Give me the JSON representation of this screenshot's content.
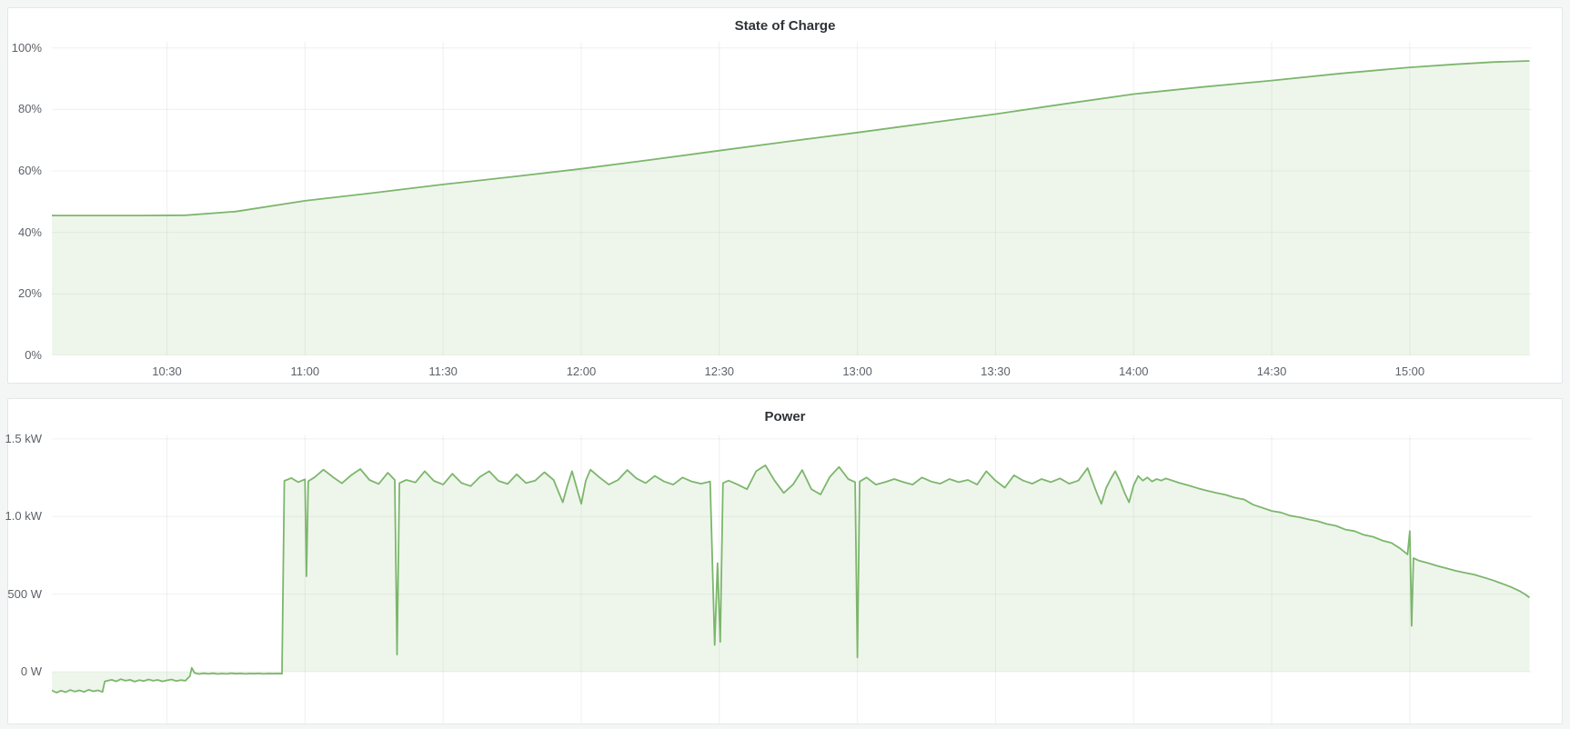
{
  "page": {
    "background": "#f4f5f5",
    "panel_background": "#ffffff",
    "panel_border": "#e4e6e9"
  },
  "panels": [
    {
      "title": "State of Charge"
    },
    {
      "title": "Power"
    }
  ],
  "colors": {
    "series_green_line": "#7cb66c",
    "series_green_fill": "rgba(124,182,108,0.13)",
    "grid_line": "rgba(40,46,52,0.07)",
    "axis_text": "#5d6269",
    "title_text": "#2f3337"
  },
  "chart_data": [
    {
      "type": "area",
      "title": "State of Charge",
      "x_unit": "time of day (minutes since 00:00)",
      "y_unit": "percent",
      "xlim": [
        605,
        926.5
      ],
      "ylim": [
        0,
        102
      ],
      "fill_baseline": 0,
      "grid": true,
      "legend": "none",
      "show_x_labels": true,
      "x_ticks": [
        {
          "value": 630,
          "label": "10:30"
        },
        {
          "value": 660,
          "label": "11:00"
        },
        {
          "value": 690,
          "label": "11:30"
        },
        {
          "value": 720,
          "label": "12:00"
        },
        {
          "value": 750,
          "label": "12:30"
        },
        {
          "value": 780,
          "label": "13:00"
        },
        {
          "value": 810,
          "label": "13:30"
        },
        {
          "value": 840,
          "label": "14:00"
        },
        {
          "value": 870,
          "label": "14:30"
        },
        {
          "value": 900,
          "label": "15:00"
        }
      ],
      "y_ticks": [
        {
          "value": 100,
          "label": "100%"
        },
        {
          "value": 80,
          "label": "80%"
        },
        {
          "value": 60,
          "label": "60%"
        },
        {
          "value": 40,
          "label": "40%"
        },
        {
          "value": 20,
          "label": "20%"
        },
        {
          "value": 0,
          "label": "0%"
        }
      ],
      "series": [
        {
          "name": "State of Charge",
          "points": [
            [
              605,
              45.5
            ],
            [
              615,
              45.5
            ],
            [
              625,
              45.5
            ],
            [
              634,
              45.6
            ],
            [
              645,
              46.8
            ],
            [
              660,
              50.3
            ],
            [
              675,
              52.9
            ],
            [
              690,
              55.6
            ],
            [
              705,
              58.1
            ],
            [
              720,
              60.7
            ],
            [
              735,
              63.6
            ],
            [
              750,
              66.6
            ],
            [
              765,
              69.6
            ],
            [
              780,
              72.5
            ],
            [
              795,
              75.5
            ],
            [
              810,
              78.5
            ],
            [
              825,
              81.8
            ],
            [
              840,
              85.0
            ],
            [
              855,
              87.3
            ],
            [
              870,
              89.4
            ],
            [
              885,
              91.7
            ],
            [
              900,
              93.7
            ],
            [
              910,
              94.7
            ],
            [
              918,
              95.4
            ],
            [
              926,
              95.8
            ]
          ]
        }
      ]
    },
    {
      "type": "area",
      "title": "Power",
      "x_unit": "time of day (minutes since 00:00)",
      "y_unit": "watts",
      "xlim": [
        605,
        926.5
      ],
      "ylim": [
        -334,
        1523
      ],
      "fill_baseline": 0,
      "grid": true,
      "legend": "none",
      "show_x_labels": false,
      "x_ticks": [
        {
          "value": 630,
          "label": ""
        },
        {
          "value": 660,
          "label": ""
        },
        {
          "value": 690,
          "label": ""
        },
        {
          "value": 720,
          "label": ""
        },
        {
          "value": 750,
          "label": ""
        },
        {
          "value": 780,
          "label": ""
        },
        {
          "value": 810,
          "label": ""
        },
        {
          "value": 840,
          "label": ""
        },
        {
          "value": 870,
          "label": ""
        },
        {
          "value": 900,
          "label": ""
        }
      ],
      "y_ticks": [
        {
          "value": 1500,
          "label": "1.5 kW"
        },
        {
          "value": 1000,
          "label": "1.0 kW"
        },
        {
          "value": 500,
          "label": "500 W"
        },
        {
          "value": 0,
          "label": "0 W"
        }
      ],
      "series": [
        {
          "name": "Power",
          "points": [
            [
              605,
              -120
            ],
            [
              606,
              -135
            ],
            [
              607,
              -122
            ],
            [
              608,
              -132
            ],
            [
              609,
              -118
            ],
            [
              610,
              -128
            ],
            [
              611,
              -120
            ],
            [
              612,
              -130
            ],
            [
              613,
              -116
            ],
            [
              614,
              -126
            ],
            [
              615,
              -120
            ],
            [
              616,
              -130
            ],
            [
              616.5,
              -62
            ],
            [
              618,
              -52
            ],
            [
              619,
              -62
            ],
            [
              620,
              -48
            ],
            [
              621,
              -58
            ],
            [
              622,
              -52
            ],
            [
              623,
              -64
            ],
            [
              624,
              -54
            ],
            [
              625,
              -60
            ],
            [
              626,
              -50
            ],
            [
              627,
              -58
            ],
            [
              628,
              -53
            ],
            [
              629,
              -62
            ],
            [
              630,
              -56
            ],
            [
              631,
              -50
            ],
            [
              632,
              -60
            ],
            [
              633,
              -54
            ],
            [
              634,
              -58
            ],
            [
              635,
              -28
            ],
            [
              635.4,
              25
            ],
            [
              636,
              -8
            ],
            [
              637,
              -15
            ],
            [
              638,
              -10
            ],
            [
              639,
              -14
            ],
            [
              640,
              -10
            ],
            [
              641,
              -15
            ],
            [
              642,
              -12
            ],
            [
              643,
              -14
            ],
            [
              644,
              -10
            ],
            [
              645,
              -13
            ],
            [
              646,
              -11
            ],
            [
              647,
              -14
            ],
            [
              648,
              -12
            ],
            [
              649,
              -13
            ],
            [
              650,
              -11
            ],
            [
              651,
              -14
            ],
            [
              652,
              -12
            ],
            [
              653,
              -13
            ],
            [
              654,
              -12
            ],
            [
              655,
              -13
            ],
            [
              655.5,
              1230
            ],
            [
              657,
              1248
            ],
            [
              658.5,
              1222
            ],
            [
              660,
              1240
            ],
            [
              660.3,
              615
            ],
            [
              660.7,
              1228
            ],
            [
              662,
              1252
            ],
            [
              664,
              1302
            ],
            [
              666,
              1256
            ],
            [
              668,
              1214
            ],
            [
              670,
              1266
            ],
            [
              672,
              1306
            ],
            [
              674,
              1236
            ],
            [
              676,
              1210
            ],
            [
              678,
              1282
            ],
            [
              679.5,
              1236
            ],
            [
              680,
              110
            ],
            [
              680.5,
              1216
            ],
            [
              682,
              1236
            ],
            [
              684,
              1220
            ],
            [
              686,
              1292
            ],
            [
              688,
              1230
            ],
            [
              690,
              1206
            ],
            [
              692,
              1276
            ],
            [
              694,
              1216
            ],
            [
              696,
              1196
            ],
            [
              698,
              1256
            ],
            [
              700,
              1292
            ],
            [
              702,
              1230
            ],
            [
              704,
              1210
            ],
            [
              706,
              1272
            ],
            [
              708,
              1216
            ],
            [
              710,
              1232
            ],
            [
              712,
              1286
            ],
            [
              714,
              1236
            ],
            [
              716,
              1092
            ],
            [
              717,
              1200
            ],
            [
              718,
              1292
            ],
            [
              720,
              1082
            ],
            [
              721,
              1232
            ],
            [
              722,
              1302
            ],
            [
              724,
              1252
            ],
            [
              726,
              1206
            ],
            [
              728,
              1236
            ],
            [
              730,
              1300
            ],
            [
              732,
              1246
            ],
            [
              734,
              1216
            ],
            [
              736,
              1262
            ],
            [
              738,
              1226
            ],
            [
              740,
              1206
            ],
            [
              742,
              1252
            ],
            [
              744,
              1226
            ],
            [
              746,
              1212
            ],
            [
              748,
              1226
            ],
            [
              749,
              172
            ],
            [
              749.6,
              700
            ],
            [
              750.2,
              192
            ],
            [
              750.8,
              1216
            ],
            [
              752,
              1232
            ],
            [
              754,
              1206
            ],
            [
              756,
              1176
            ],
            [
              758,
              1292
            ],
            [
              760,
              1330
            ],
            [
              762,
              1232
            ],
            [
              764,
              1152
            ],
            [
              766,
              1206
            ],
            [
              768,
              1300
            ],
            [
              770,
              1176
            ],
            [
              772,
              1142
            ],
            [
              774,
              1256
            ],
            [
              776,
              1320
            ],
            [
              778,
              1242
            ],
            [
              779.5,
              1222
            ],
            [
              780,
              92
            ],
            [
              780.5,
              1226
            ],
            [
              782,
              1252
            ],
            [
              784,
              1206
            ],
            [
              786,
              1222
            ],
            [
              788,
              1242
            ],
            [
              790,
              1222
            ],
            [
              792,
              1206
            ],
            [
              794,
              1252
            ],
            [
              796,
              1226
            ],
            [
              798,
              1212
            ],
            [
              800,
              1242
            ],
            [
              802,
              1222
            ],
            [
              804,
              1236
            ],
            [
              806,
              1206
            ],
            [
              808,
              1292
            ],
            [
              810,
              1232
            ],
            [
              812,
              1186
            ],
            [
              814,
              1266
            ],
            [
              816,
              1232
            ],
            [
              818,
              1212
            ],
            [
              820,
              1242
            ],
            [
              822,
              1222
            ],
            [
              824,
              1246
            ],
            [
              826,
              1212
            ],
            [
              828,
              1232
            ],
            [
              830,
              1312
            ],
            [
              831,
              1232
            ],
            [
              832,
              1152
            ],
            [
              833,
              1082
            ],
            [
              834,
              1182
            ],
            [
              835,
              1242
            ],
            [
              836,
              1292
            ],
            [
              837,
              1232
            ],
            [
              838,
              1156
            ],
            [
              839,
              1092
            ],
            [
              840,
              1202
            ],
            [
              841,
              1262
            ],
            [
              842,
              1232
            ],
            [
              843,
              1252
            ],
            [
              844,
              1226
            ],
            [
              845,
              1242
            ],
            [
              846,
              1232
            ],
            [
              847,
              1246
            ],
            [
              848,
              1236
            ],
            [
              850,
              1216
            ],
            [
              852,
              1200
            ],
            [
              854,
              1182
            ],
            [
              856,
              1166
            ],
            [
              858,
              1152
            ],
            [
              860,
              1140
            ],
            [
              862,
              1122
            ],
            [
              864,
              1110
            ],
            [
              866,
              1076
            ],
            [
              868,
              1056
            ],
            [
              870,
              1036
            ],
            [
              872,
              1026
            ],
            [
              874,
              1006
            ],
            [
              876,
              996
            ],
            [
              878,
              982
            ],
            [
              880,
              970
            ],
            [
              882,
              952
            ],
            [
              884,
              940
            ],
            [
              886,
              916
            ],
            [
              888,
              906
            ],
            [
              890,
              882
            ],
            [
              892,
              870
            ],
            [
              894,
              846
            ],
            [
              896,
              830
            ],
            [
              898,
              792
            ],
            [
              899.5,
              756
            ],
            [
              900,
              906
            ],
            [
              900.4,
              296
            ],
            [
              900.8,
              732
            ],
            [
              902,
              716
            ],
            [
              904,
              700
            ],
            [
              906,
              682
            ],
            [
              908,
              666
            ],
            [
              910,
              650
            ],
            [
              912,
              638
            ],
            [
              914,
              626
            ],
            [
              916,
              608
            ],
            [
              918,
              590
            ],
            [
              920,
              568
            ],
            [
              922,
              546
            ],
            [
              924,
              518
            ],
            [
              925,
              500
            ],
            [
              926,
              478
            ]
          ]
        }
      ]
    }
  ]
}
